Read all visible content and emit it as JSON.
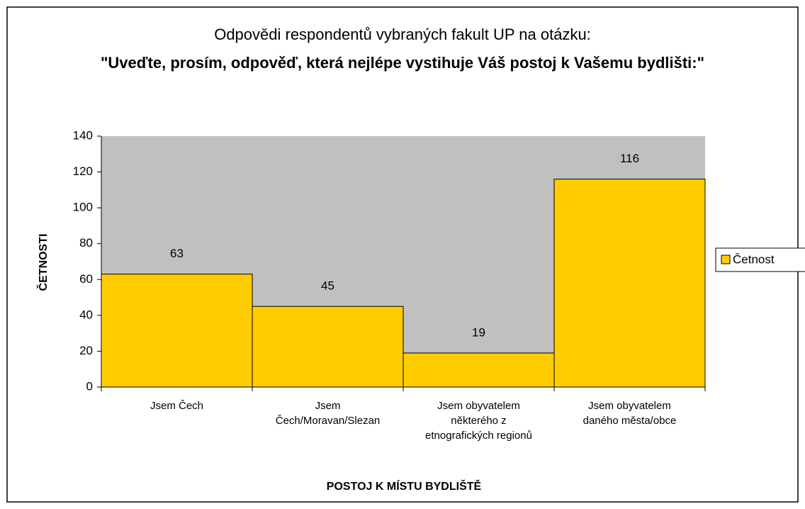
{
  "chart_data": {
    "type": "bar",
    "title": "Odpovědi respondentů vybraných fakult UP na otázku:",
    "subtitle": "\"Uveďte, prosím, odpověď, která nejlépe vystihuje Váš postoj k Vašemu bydlišti:\"",
    "x_label": "POSTOJ K MÍSTU BYDLIŠTĚ",
    "y_label": "ČETNOSTI",
    "categories": [
      "Jsem Čech",
      "Jsem Čech/Moravan/Slezan",
      "Jsem obyvatelem některého z etnografických regionů",
      "Jsem obyvatelem daného města/obce"
    ],
    "series": [
      {
        "name": "Četnost",
        "color": "#ffcc00",
        "values": [
          63,
          45,
          19,
          116
        ]
      }
    ],
    "ylim": [
      0,
      140
    ],
    "yticks": [
      0,
      20,
      40,
      60,
      80,
      100,
      120,
      140
    ],
    "plot_background": "#c0c0c0",
    "legend": "right"
  }
}
